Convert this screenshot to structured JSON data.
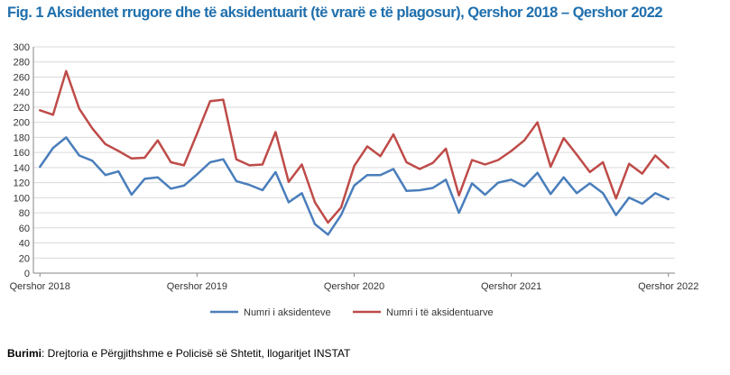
{
  "title": "Fig. 1 Aksidentet rrugore dhe të aksidentuarit (të vrarë e të plagosur), Qershor 2018 – Qershor 2022",
  "source": {
    "label": "Burimi",
    "text": ": Drejtoria e Përgjithshme e Policisë së Shtetit, llogaritjet INSTAT"
  },
  "chart_data": {
    "type": "line",
    "title": "Fig. 1 Aksidentet rrugore dhe të aksidentuarit (të vrarë e të plagosur), Qershor 2018 – Qershor 2022",
    "xlabel": "",
    "ylabel": "",
    "ylim": [
      0,
      300
    ],
    "yticks": [
      0,
      20,
      40,
      60,
      80,
      100,
      120,
      140,
      160,
      180,
      200,
      220,
      240,
      260,
      280,
      300
    ],
    "grid": true,
    "legend_position": "bottom",
    "x_tick_labels": [
      {
        "index": 0,
        "label": "Qershor 2018"
      },
      {
        "index": 12,
        "label": "Qershor 2019"
      },
      {
        "index": 24,
        "label": "Qershor 2020"
      },
      {
        "index": 36,
        "label": "Qershor 2021"
      },
      {
        "index": 48,
        "label": "Qershor 2022"
      }
    ],
    "series": [
      {
        "name": "Numri i aksidenteve",
        "color": "#4a7ebb",
        "values": [
          141,
          166,
          180,
          156,
          149,
          130,
          135,
          104,
          125,
          127,
          112,
          116,
          131,
          147,
          151,
          122,
          117,
          110,
          134,
          94,
          106,
          65,
          51,
          77,
          116,
          130,
          130,
          138,
          109,
          110,
          113,
          124,
          80,
          119,
          104,
          120,
          124,
          115,
          133,
          105,
          127,
          106,
          119,
          106,
          77,
          100,
          92,
          106,
          98
        ]
      },
      {
        "name": "Numri i të aksidentuarve",
        "color": "#be4b48",
        "values": [
          216,
          210,
          268,
          218,
          192,
          171,
          162,
          152,
          153,
          176,
          147,
          143,
          185,
          228,
          230,
          151,
          143,
          144,
          187,
          121,
          144,
          94,
          67,
          87,
          142,
          168,
          155,
          184,
          147,
          138,
          146,
          165,
          103,
          150,
          144,
          150,
          162,
          176,
          200,
          141,
          179,
          157,
          134,
          147,
          99,
          145,
          132,
          156,
          140
        ]
      }
    ]
  }
}
